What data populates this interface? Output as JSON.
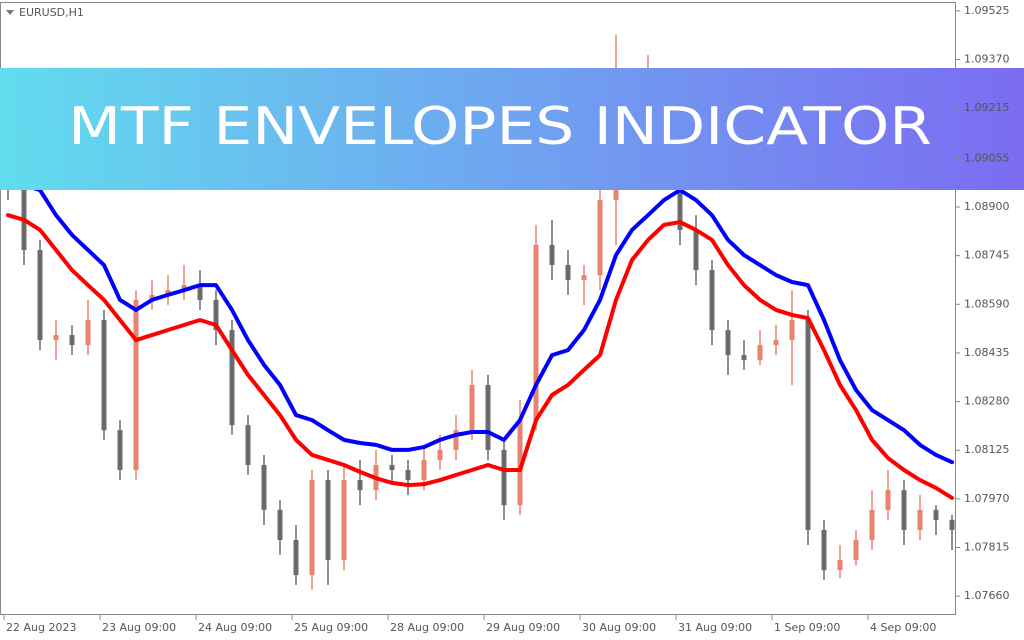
{
  "chart_data": {
    "type": "candlestick",
    "title": "EURUSD,H1",
    "categories": [
      "22 Aug 2023",
      null,
      null,
      null,
      null,
      null,
      "23 Aug 09:00",
      null,
      null,
      null,
      null,
      null,
      "24 Aug 09:00",
      null,
      null,
      null,
      null,
      null,
      "25 Aug 09:00",
      null,
      null,
      null,
      null,
      null,
      "28 Aug 09:00",
      null,
      null,
      null,
      null,
      null,
      "29 Aug 09:00",
      null,
      null,
      null,
      null,
      null,
      "30 Aug 09:00",
      null,
      null,
      null,
      null,
      null,
      "31 Aug 09:00",
      null,
      null,
      null,
      null,
      null,
      "1 Sep 09:00",
      null,
      null,
      null,
      null,
      null,
      "4 Sep 09:00",
      null,
      null,
      null,
      null,
      null
    ],
    "open": [
      1.09145,
      1.09082,
      1.08763,
      1.08476,
      1.08492,
      1.0846,
      1.0854,
      1.08189,
      1.08062,
      1.08604,
      1.0862,
      1.08635,
      1.08651,
      1.08604,
      1.08508,
      1.08205,
      1.08078,
      1.07935,
      1.07839,
      1.07727,
      1.0803,
      1.07775,
      1.0803,
      1.07998,
      1.08078,
      1.08062,
      1.0803,
      1.08094,
      1.08126,
      1.08189,
      1.08333,
      1.08126,
      1.0795,
      1.08221,
      1.08779,
      1.08715,
      1.08667,
      1.08683,
      1.08922,
      1.09257,
      1.09225,
      1.09273,
      1.09113,
      1.08827,
      1.08699,
      1.08508,
      1.08428,
      1.08412,
      1.0846,
      1.08476,
      1.0854,
      1.07871,
      1.07743,
      1.07775,
      1.07839,
      1.07935,
      1.07998,
      1.07871,
      1.07935,
      1.07903
    ],
    "high": [
      1.09257,
      1.09113,
      1.08795,
      1.0854,
      1.08524,
      1.08604,
      1.08572,
      1.08221,
      1.08635,
      1.08667,
      1.08683,
      1.08715,
      1.08699,
      1.08635,
      1.0854,
      1.08237,
      1.0811,
      1.07966,
      1.07887,
      1.08062,
      1.08062,
      1.08078,
      1.08094,
      1.08126,
      1.0811,
      1.08094,
      1.08142,
      1.08174,
      1.08237,
      1.08381,
      1.08365,
      1.08158,
      1.08285,
      1.08843,
      1.08859,
      1.08763,
      1.08715,
      1.08954,
      1.09448,
      1.09336,
      1.09384,
      1.09305,
      1.09145,
      1.08874,
      1.08731,
      1.0854,
      1.08476,
      1.08508,
      1.08524,
      1.08635,
      1.08572,
      1.07903,
      1.07823,
      1.07871,
      1.07998,
      1.08062,
      1.0803,
      1.07982,
      1.0795,
      1.07919
    ],
    "low": [
      1.08922,
      1.08715,
      1.08444,
      1.08412,
      1.08428,
      1.08428,
      1.08158,
      1.0803,
      1.0803,
      1.08572,
      1.08588,
      1.08604,
      1.08572,
      1.0846,
      1.08174,
      1.08046,
      1.07887,
      1.07791,
      1.07696,
      1.0768,
      1.07696,
      1.07743,
      1.0795,
      1.07966,
      1.08014,
      1.07982,
      1.07998,
      1.08062,
      1.08094,
      1.08158,
      1.08094,
      1.07903,
      1.07919,
      1.08189,
      1.08667,
      1.0862,
      1.08588,
      1.08635,
      1.08779,
      1.09177,
      1.09193,
      1.0905,
      1.08779,
      1.08651,
      1.0846,
      1.08365,
      1.08381,
      1.08397,
      1.08428,
      1.08333,
      1.07823,
      1.07712,
      1.07718,
      1.07759,
      1.07807,
      1.07903,
      1.07823,
      1.07839,
      1.07855,
      1.07807
    ],
    "close": [
      1.09082,
      1.08763,
      1.08476,
      1.08492,
      1.0846,
      1.0854,
      1.08189,
      1.08062,
      1.08604,
      1.0862,
      1.08635,
      1.08651,
      1.08604,
      1.08508,
      1.08205,
      1.08078,
      1.07935,
      1.07839,
      1.07727,
      1.0803,
      1.07775,
      1.0803,
      1.07998,
      1.08078,
      1.08062,
      1.0803,
      1.08094,
      1.08126,
      1.08189,
      1.08333,
      1.08126,
      1.0795,
      1.08221,
      1.08779,
      1.08715,
      1.08667,
      1.08683,
      1.08922,
      1.09257,
      1.09225,
      1.09273,
      1.09113,
      1.08827,
      1.08699,
      1.08508,
      1.08428,
      1.08412,
      1.0846,
      1.08476,
      1.0854,
      1.07871,
      1.07743,
      1.07775,
      1.07839,
      1.07935,
      1.07998,
      1.07871,
      1.07935,
      1.07903,
      1.07871
    ],
    "up_color": "#e8836f",
    "down_color": "#6b6b6b",
    "series": [
      {
        "color": "#0000ff",
        "values": [
          1.08986,
          1.0897,
          1.08954,
          1.08874,
          1.08811,
          1.08763,
          1.08715,
          1.08604,
          1.08572,
          1.08604,
          1.0862,
          1.08635,
          1.08651,
          1.08651,
          1.08572,
          1.08476,
          1.08397,
          1.08333,
          1.08237,
          1.08221,
          1.08189,
          1.08158,
          1.08148,
          1.08142,
          1.08126,
          1.08126,
          1.08135,
          1.08158,
          1.08174,
          1.08183,
          1.08183,
          1.08158,
          1.08221,
          1.08333,
          1.08428,
          1.08444,
          1.08508,
          1.08604,
          1.08747,
          1.08827,
          1.08874,
          1.08922,
          1.08954,
          1.08922,
          1.08874,
          1.08795,
          1.08747,
          1.08715,
          1.08683,
          1.08661,
          1.08651,
          1.0854,
          1.08412,
          1.08317,
          1.08253,
          1.08221,
          1.08189,
          1.08142,
          1.0811,
          1.08087
        ]
      },
      {
        "color": "#ff0000",
        "values": [
          1.08874,
          1.08859,
          1.08827,
          1.08763,
          1.08699,
          1.08651,
          1.08604,
          1.0854,
          1.08476,
          1.08492,
          1.08508,
          1.08524,
          1.0854,
          1.08524,
          1.08444,
          1.08365,
          1.08301,
          1.08237,
          1.08158,
          1.0811,
          1.08094,
          1.08078,
          1.08056,
          1.08036,
          1.08021,
          1.08014,
          1.08017,
          1.0803,
          1.08046,
          1.08062,
          1.08078,
          1.08062,
          1.08062,
          1.08221,
          1.08301,
          1.08333,
          1.08381,
          1.08428,
          1.08604,
          1.08731,
          1.08795,
          1.08843,
          1.08852,
          1.08827,
          1.08795,
          1.08715,
          1.08651,
          1.08604,
          1.08572,
          1.08556,
          1.08546,
          1.08444,
          1.08333,
          1.08253,
          1.08158,
          1.081,
          1.08062,
          1.0803,
          1.08005,
          1.07973
        ]
      }
    ],
    "ylim": [
      1.076,
      1.0955
    ],
    "yticks": [
      1.09525,
      {
        "value": 1.0937,
        "label": "1.09370"
      },
      1.09215,
      1.09055,
      {
        "value": 1.089,
        "label": "1.08900"
      },
      1.08745,
      {
        "value": 1.0859,
        "label": "1.08590"
      },
      1.08435,
      {
        "value": 1.0828,
        "label": "1.08280"
      },
      1.08125,
      {
        "value": 1.0797,
        "label": "1.07970"
      },
      1.07815,
      {
        "value": 1.0766,
        "label": "1.07660"
      }
    ],
    "grid": false
  },
  "banner": {
    "title": "MTF ENVELOPES INDICATOR"
  }
}
